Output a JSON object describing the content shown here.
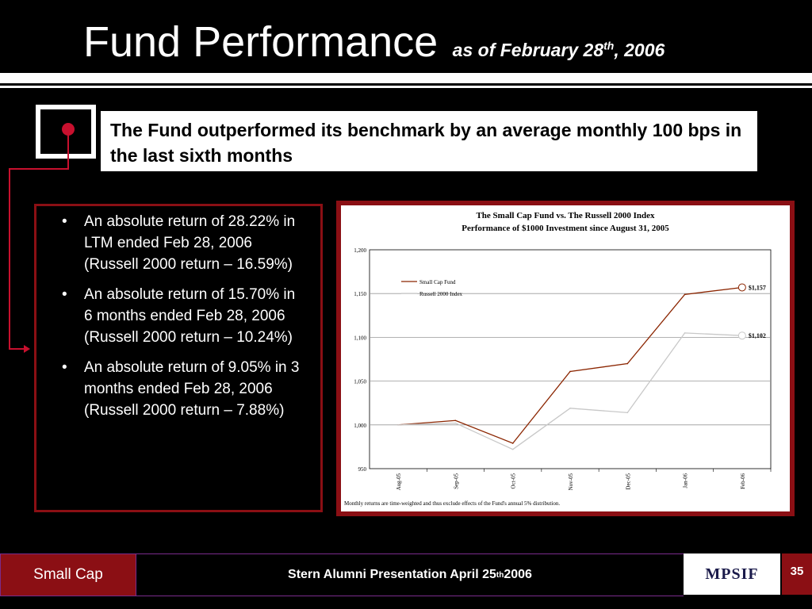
{
  "slide": {
    "title": "Fund Performance",
    "subtitle_prefix": "as of February 28",
    "subtitle_sup": "th",
    "subtitle_suffix": ", 2006",
    "callout": "The Fund outperformed its benchmark by an average monthly 100 bps in the last sixth months",
    "bullets": [
      "An absolute return of 28.22% in LTM ended Feb 28, 2006  (Russell 2000 return – 16.59%)",
      "An absolute return of 15.70% in 6 months ended Feb 28, 2006 (Russell 2000  return – 10.24%)",
      "An absolute return of 9.05%  in 3 months ended Feb 28, 2006 (Russell 2000 return –  7.88%)"
    ],
    "colors": {
      "accent": "#8b0f14",
      "fund_line": "#8b2500",
      "index_line": "#c8c8c8",
      "border": "#7a2c8c"
    }
  },
  "footer": {
    "left_label": "Small Cap",
    "center_prefix": "Stern Alumni Presentation April 25",
    "center_sup": "th",
    "center_suffix": " 2006",
    "logo_text": "MPSIF",
    "page_number": "35"
  },
  "chart_data": {
    "type": "line",
    "title": "The Small Cap Fund vs. The Russell 2000 Index",
    "subtitle": "Performance of $1000 Investment since August 31, 2005",
    "categories": [
      "Aug-05",
      "Sep-05",
      "Oct-05",
      "Nov-05",
      "Dec-05",
      "Jan-06",
      "Feb-06"
    ],
    "series": [
      {
        "name": "Small Cap Fund",
        "values": [
          1000,
          1005,
          979,
          1061,
          1070,
          1149,
          1157
        ],
        "end_label": "$1,157"
      },
      {
        "name": "Russell 2000 Index",
        "values": [
          1000,
          1002,
          972,
          1019,
          1014,
          1105,
          1102
        ],
        "end_label": "$1,102"
      }
    ],
    "y_ticks": [
      "1,200",
      "1,150",
      "1,100",
      "1,050",
      "1,000",
      "950"
    ],
    "ylim": [
      950,
      1200
    ],
    "grid": true,
    "legend_position": "top-left",
    "footnote": "Monthly returns are time-weighted and thus exclude effects of the Fund's annual 5% distribution."
  }
}
